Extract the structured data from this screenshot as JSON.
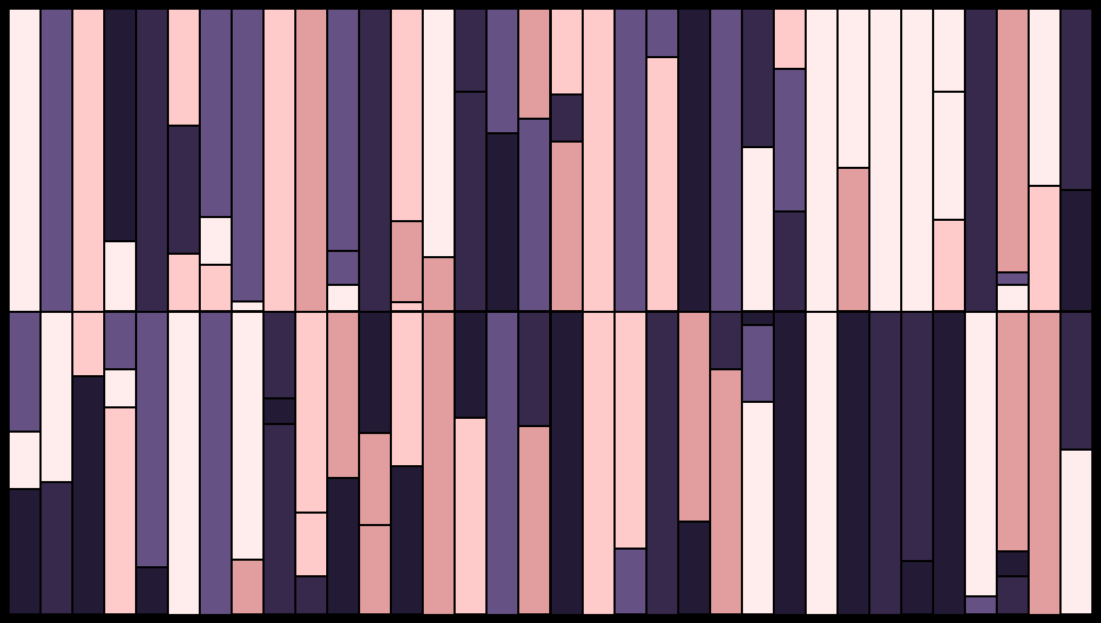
{
  "palette": {
    "A": "#FFECEC",
    "B": "#FFCACA",
    "C": "#E29E9E",
    "D": "#665184",
    "E": "#37294B",
    "F": "#231B35",
    "background": "#000000"
  },
  "grid": {
    "columns": 34,
    "rows": 2
  },
  "columns": [
    {
      "top": [
        {
          "color": "A",
          "frac": 1.0
        }
      ],
      "bottom": [
        {
          "color": "D",
          "frac": 0.397
        },
        {
          "color": "A",
          "frac": 0.188
        },
        {
          "color": "F",
          "frac": 0.415
        }
      ]
    },
    {
      "top": [
        {
          "color": "D",
          "frac": 1.0
        }
      ],
      "bottom": [
        {
          "color": "A",
          "frac": 0.562
        },
        {
          "color": "E",
          "frac": 0.438
        }
      ]
    },
    {
      "top": [
        {
          "color": "B",
          "frac": 1.0
        }
      ],
      "bottom": [
        {
          "color": "B",
          "frac": 0.214
        },
        {
          "color": "F",
          "frac": 0.786
        }
      ]
    },
    {
      "top": [
        {
          "color": "F",
          "frac": 0.769
        },
        {
          "color": "A",
          "frac": 0.231
        }
      ],
      "bottom": [
        {
          "color": "D",
          "frac": 0.191
        },
        {
          "color": "A",
          "frac": 0.126
        },
        {
          "color": "B",
          "frac": 0.683
        }
      ]
    },
    {
      "top": [
        {
          "color": "E",
          "frac": 1.0
        }
      ],
      "bottom": [
        {
          "color": "D",
          "frac": 0.844
        },
        {
          "color": "F",
          "frac": 0.156
        }
      ]
    },
    {
      "top": [
        {
          "color": "B",
          "frac": 0.387
        },
        {
          "color": "E",
          "frac": 0.423
        },
        {
          "color": "B",
          "frac": 0.19
        }
      ],
      "bottom": [
        {
          "color": "A",
          "frac": 1.0
        }
      ]
    },
    {
      "top": [
        {
          "color": "D",
          "frac": 0.688
        },
        {
          "color": "A",
          "frac": 0.158
        },
        {
          "color": "B",
          "frac": 0.154
        }
      ],
      "bottom": [
        {
          "color": "D",
          "frac": 1.0
        }
      ]
    },
    {
      "top": [
        {
          "color": "D",
          "frac": 0.967
        },
        {
          "color": "A",
          "frac": 0.033
        }
      ],
      "bottom": [
        {
          "color": "A",
          "frac": 0.818
        },
        {
          "color": "C",
          "frac": 0.182
        }
      ]
    },
    {
      "top": [
        {
          "color": "B",
          "frac": 1.0
        }
      ],
      "bottom": [
        {
          "color": "E",
          "frac": 0.286
        },
        {
          "color": "F",
          "frac": 0.084
        },
        {
          "color": "E",
          "frac": 0.63
        }
      ]
    },
    {
      "top": [
        {
          "color": "C",
          "frac": 1.0
        }
      ],
      "bottom": [
        {
          "color": "B",
          "frac": 0.664
        },
        {
          "color": "B",
          "frac": 0.21
        },
        {
          "color": "E",
          "frac": 0.126
        }
      ]
    },
    {
      "top": [
        {
          "color": "D",
          "frac": 0.8
        },
        {
          "color": "D",
          "frac": 0.113
        },
        {
          "color": "A",
          "frac": 0.087
        }
      ],
      "bottom": [
        {
          "color": "C",
          "frac": 0.55
        },
        {
          "color": "F",
          "frac": 0.45
        }
      ]
    },
    {
      "top": [
        {
          "color": "E",
          "frac": 1.0
        }
      ],
      "bottom": [
        {
          "color": "F",
          "frac": 0.4
        },
        {
          "color": "C",
          "frac": 0.305
        },
        {
          "color": "C",
          "frac": 0.295
        }
      ]
    },
    {
      "top": [
        {
          "color": "B",
          "frac": 0.703
        },
        {
          "color": "C",
          "frac": 0.266
        },
        {
          "color": "B",
          "frac": 0.031
        }
      ],
      "bottom": [
        {
          "color": "B",
          "frac": 0.51
        },
        {
          "color": "F",
          "frac": 0.49
        }
      ]
    },
    {
      "top": [
        {
          "color": "A",
          "frac": 0.821
        },
        {
          "color": "C",
          "frac": 0.179
        }
      ],
      "bottom": [
        {
          "color": "C",
          "frac": 1.0
        }
      ]
    },
    {
      "top": [
        {
          "color": "E",
          "frac": 0.275
        },
        {
          "color": "E",
          "frac": 0.725
        }
      ],
      "bottom": [
        {
          "color": "F",
          "frac": 0.35
        },
        {
          "color": "B",
          "frac": 0.65
        }
      ]
    },
    {
      "top": [
        {
          "color": "D",
          "frac": 0.412
        },
        {
          "color": "F",
          "frac": 0.588
        }
      ],
      "bottom": [
        {
          "color": "D",
          "frac": 1.0
        }
      ]
    },
    {
      "top": [
        {
          "color": "C",
          "frac": 0.365
        },
        {
          "color": "D",
          "frac": 0.635
        }
      ],
      "bottom": [
        {
          "color": "E",
          "frac": 0.377
        },
        {
          "color": "C",
          "frac": 0.623
        }
      ]
    },
    {
      "top": [
        {
          "color": "B",
          "frac": 0.285
        },
        {
          "color": "E",
          "frac": 0.155
        },
        {
          "color": "C",
          "frac": 0.56
        }
      ],
      "bottom": [
        {
          "color": "F",
          "frac": 1.0
        }
      ]
    },
    {
      "top": [
        {
          "color": "B",
          "frac": 1.0
        }
      ],
      "bottom": [
        {
          "color": "B",
          "frac": 1.0
        }
      ]
    },
    {
      "top": [
        {
          "color": "D",
          "frac": 1.0
        }
      ],
      "bottom": [
        {
          "color": "B",
          "frac": 0.783
        },
        {
          "color": "D",
          "frac": 0.217
        }
      ]
    },
    {
      "top": [
        {
          "color": "D",
          "frac": 0.16
        },
        {
          "color": "B",
          "frac": 0.84
        }
      ],
      "bottom": [
        {
          "color": "E",
          "frac": 1.0
        }
      ]
    },
    {
      "top": [
        {
          "color": "F",
          "frac": 1.0
        }
      ],
      "bottom": [
        {
          "color": "C",
          "frac": 0.694
        },
        {
          "color": "F",
          "frac": 0.306
        }
      ]
    },
    {
      "top": [
        {
          "color": "D",
          "frac": 1.0
        }
      ],
      "bottom": [
        {
          "color": "E",
          "frac": 0.19
        },
        {
          "color": "C",
          "frac": 0.81
        }
      ]
    },
    {
      "top": [
        {
          "color": "E",
          "frac": 0.458
        },
        {
          "color": "A",
          "frac": 0.542
        }
      ],
      "bottom": [
        {
          "color": "F",
          "frac": 0.045
        },
        {
          "color": "D",
          "frac": 0.254
        },
        {
          "color": "A",
          "frac": 0.701
        }
      ]
    },
    {
      "top": [
        {
          "color": "B",
          "frac": 0.2
        },
        {
          "color": "D",
          "frac": 0.47
        },
        {
          "color": "E",
          "frac": 0.33
        }
      ],
      "bottom": [
        {
          "color": "F",
          "frac": 1.0
        }
      ]
    },
    {
      "top": [
        {
          "color": "A",
          "frac": 1.0
        }
      ],
      "bottom": [
        {
          "color": "A",
          "frac": 1.0
        }
      ]
    },
    {
      "top": [
        {
          "color": "A",
          "frac": 0.527
        },
        {
          "color": "C",
          "frac": 0.473
        }
      ],
      "bottom": [
        {
          "color": "F",
          "frac": 1.0
        }
      ]
    },
    {
      "top": [
        {
          "color": "A",
          "frac": 1.0
        }
      ],
      "bottom": [
        {
          "color": "E",
          "frac": 1.0
        }
      ]
    },
    {
      "top": [
        {
          "color": "A",
          "frac": 1.0
        }
      ],
      "bottom": [
        {
          "color": "E",
          "frac": 0.822
        },
        {
          "color": "F",
          "frac": 0.178
        }
      ]
    },
    {
      "top": [
        {
          "color": "A",
          "frac": 0.276
        },
        {
          "color": "A",
          "frac": 0.422
        },
        {
          "color": "B",
          "frac": 0.302
        }
      ],
      "bottom": [
        {
          "color": "F",
          "frac": 1.0
        }
      ]
    },
    {
      "top": [
        {
          "color": "E",
          "frac": 1.0
        }
      ],
      "bottom": [
        {
          "color": "A",
          "frac": 0.94
        },
        {
          "color": "D",
          "frac": 0.06
        }
      ]
    },
    {
      "top": [
        {
          "color": "C",
          "frac": 0.87
        },
        {
          "color": "D",
          "frac": 0.042
        },
        {
          "color": "A",
          "frac": 0.088
        }
      ],
      "bottom": [
        {
          "color": "C",
          "frac": 0.79
        },
        {
          "color": "F",
          "frac": 0.083
        },
        {
          "color": "E",
          "frac": 0.127
        }
      ]
    },
    {
      "top": [
        {
          "color": "A",
          "frac": 0.585
        },
        {
          "color": "B",
          "frac": 0.415
        }
      ],
      "bottom": [
        {
          "color": "C",
          "frac": 1.0
        }
      ]
    },
    {
      "top": [
        {
          "color": "E",
          "frac": 0.6
        },
        {
          "color": "F",
          "frac": 0.4
        }
      ],
      "bottom": [
        {
          "color": "E",
          "frac": 0.455
        },
        {
          "color": "A",
          "frac": 0.545
        }
      ]
    }
  ]
}
